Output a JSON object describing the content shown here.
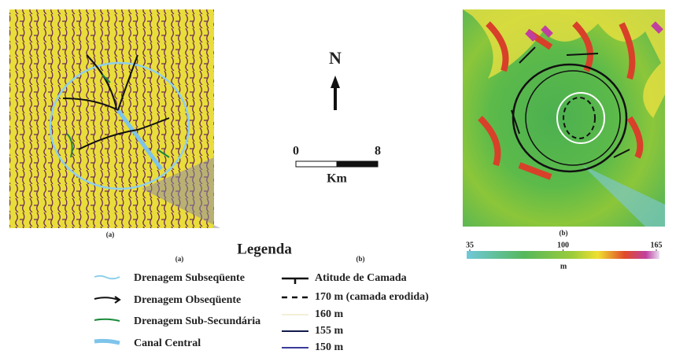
{
  "figure": {
    "map_a": {
      "caption": "(a)"
    },
    "map_b": {
      "caption": "(b)"
    },
    "north_arrow": {
      "label": "N"
    },
    "scale_bar": {
      "start": "0",
      "end": "8",
      "unit": "Km"
    },
    "colorbar": {
      "ticks": [
        35,
        100,
        165
      ],
      "range": [
        35,
        165
      ],
      "unit": "m"
    },
    "legend": {
      "title": "Legenda",
      "column_a": {
        "label": "(a)",
        "items": [
          "Drenagem Subseqüente",
          "Drenagem Obseqüente",
          "Drenagem Sub-Secundária",
          "Canal Central"
        ]
      },
      "column_b": {
        "label": "(b)",
        "items": [
          "Atitude de Camada",
          "170 m (camada erodida)",
          "160 m",
          "155 m",
          "150 m"
        ]
      }
    }
  }
}
